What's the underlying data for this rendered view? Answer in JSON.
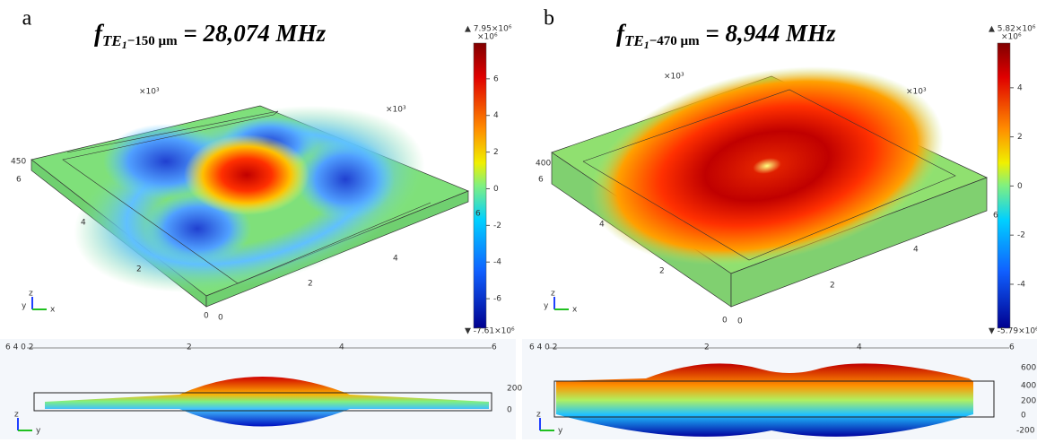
{
  "panels": [
    {
      "label": "a",
      "title": {
        "f": "f",
        "sub": "TE",
        "subsub": "1",
        "sub2": "−150 µm",
        "rest": " = 28,074 MHz"
      },
      "colorbar": {
        "max": {
          "value": 7.95,
          "label": "▲ 7.95×10⁶"
        },
        "unit": "×10⁶",
        "ticks": [
          6,
          4,
          2,
          0,
          -2,
          -4,
          -6
        ],
        "min": {
          "value": -7.61,
          "label": "▼ -7.61×10⁶"
        }
      },
      "view_3d": {
        "axis_labels": [
          "×10³",
          "×10³",
          "450",
          "6",
          "4",
          "2",
          "0",
          "0",
          "2",
          "4",
          "6"
        ],
        "triad": [
          "z",
          "y",
          "x"
        ]
      },
      "view_side": {
        "axis_labels": [
          "6 4 0 2",
          "2",
          "4",
          "6",
          "200",
          "0"
        ],
        "triad": [
          "z",
          "y"
        ]
      }
    },
    {
      "label": "b",
      "title": {
        "f": "f",
        "sub": "TE",
        "subsub": "1",
        "sub2": "−470 µm",
        "rest": " = 8,944 MHz"
      },
      "colorbar": {
        "max": {
          "value": 5.82,
          "label": "▲ 5.82×10⁶"
        },
        "unit": "×10⁶",
        "ticks": [
          4,
          2,
          0,
          -2,
          -4
        ],
        "min": {
          "value": -5.79,
          "label": "▼ -5.79×10⁶"
        }
      },
      "view_3d": {
        "axis_labels": [
          "×10³",
          "×10³",
          "400",
          "6",
          "4",
          "2",
          "0",
          "0",
          "2",
          "4",
          "6"
        ],
        "triad": [
          "z",
          "y",
          "x"
        ]
      },
      "view_side": {
        "axis_labels": [
          "6 4 0 2",
          "2",
          "4",
          "6",
          "600",
          "400",
          "200",
          "0",
          "-200"
        ],
        "triad": [
          "z",
          "y"
        ]
      }
    }
  ]
}
